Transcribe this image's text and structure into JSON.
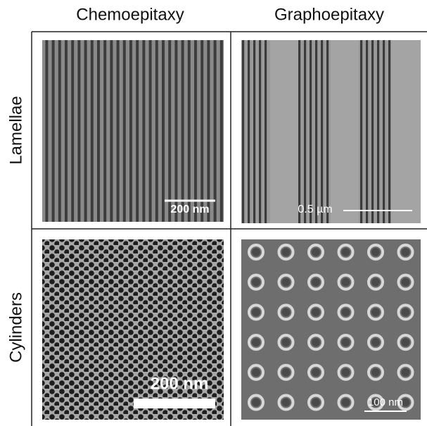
{
  "columns": [
    "Chemoepitaxy",
    "Graphoepitaxy"
  ],
  "rows": [
    "Lamellae",
    "Cylinders"
  ],
  "panels": [
    {
      "scale_bar": "200 nm"
    },
    {
      "scale_bar": "0.5 µm"
    },
    {
      "scale_bar": "200 nm"
    },
    {
      "scale_bar": "100 nm"
    }
  ]
}
